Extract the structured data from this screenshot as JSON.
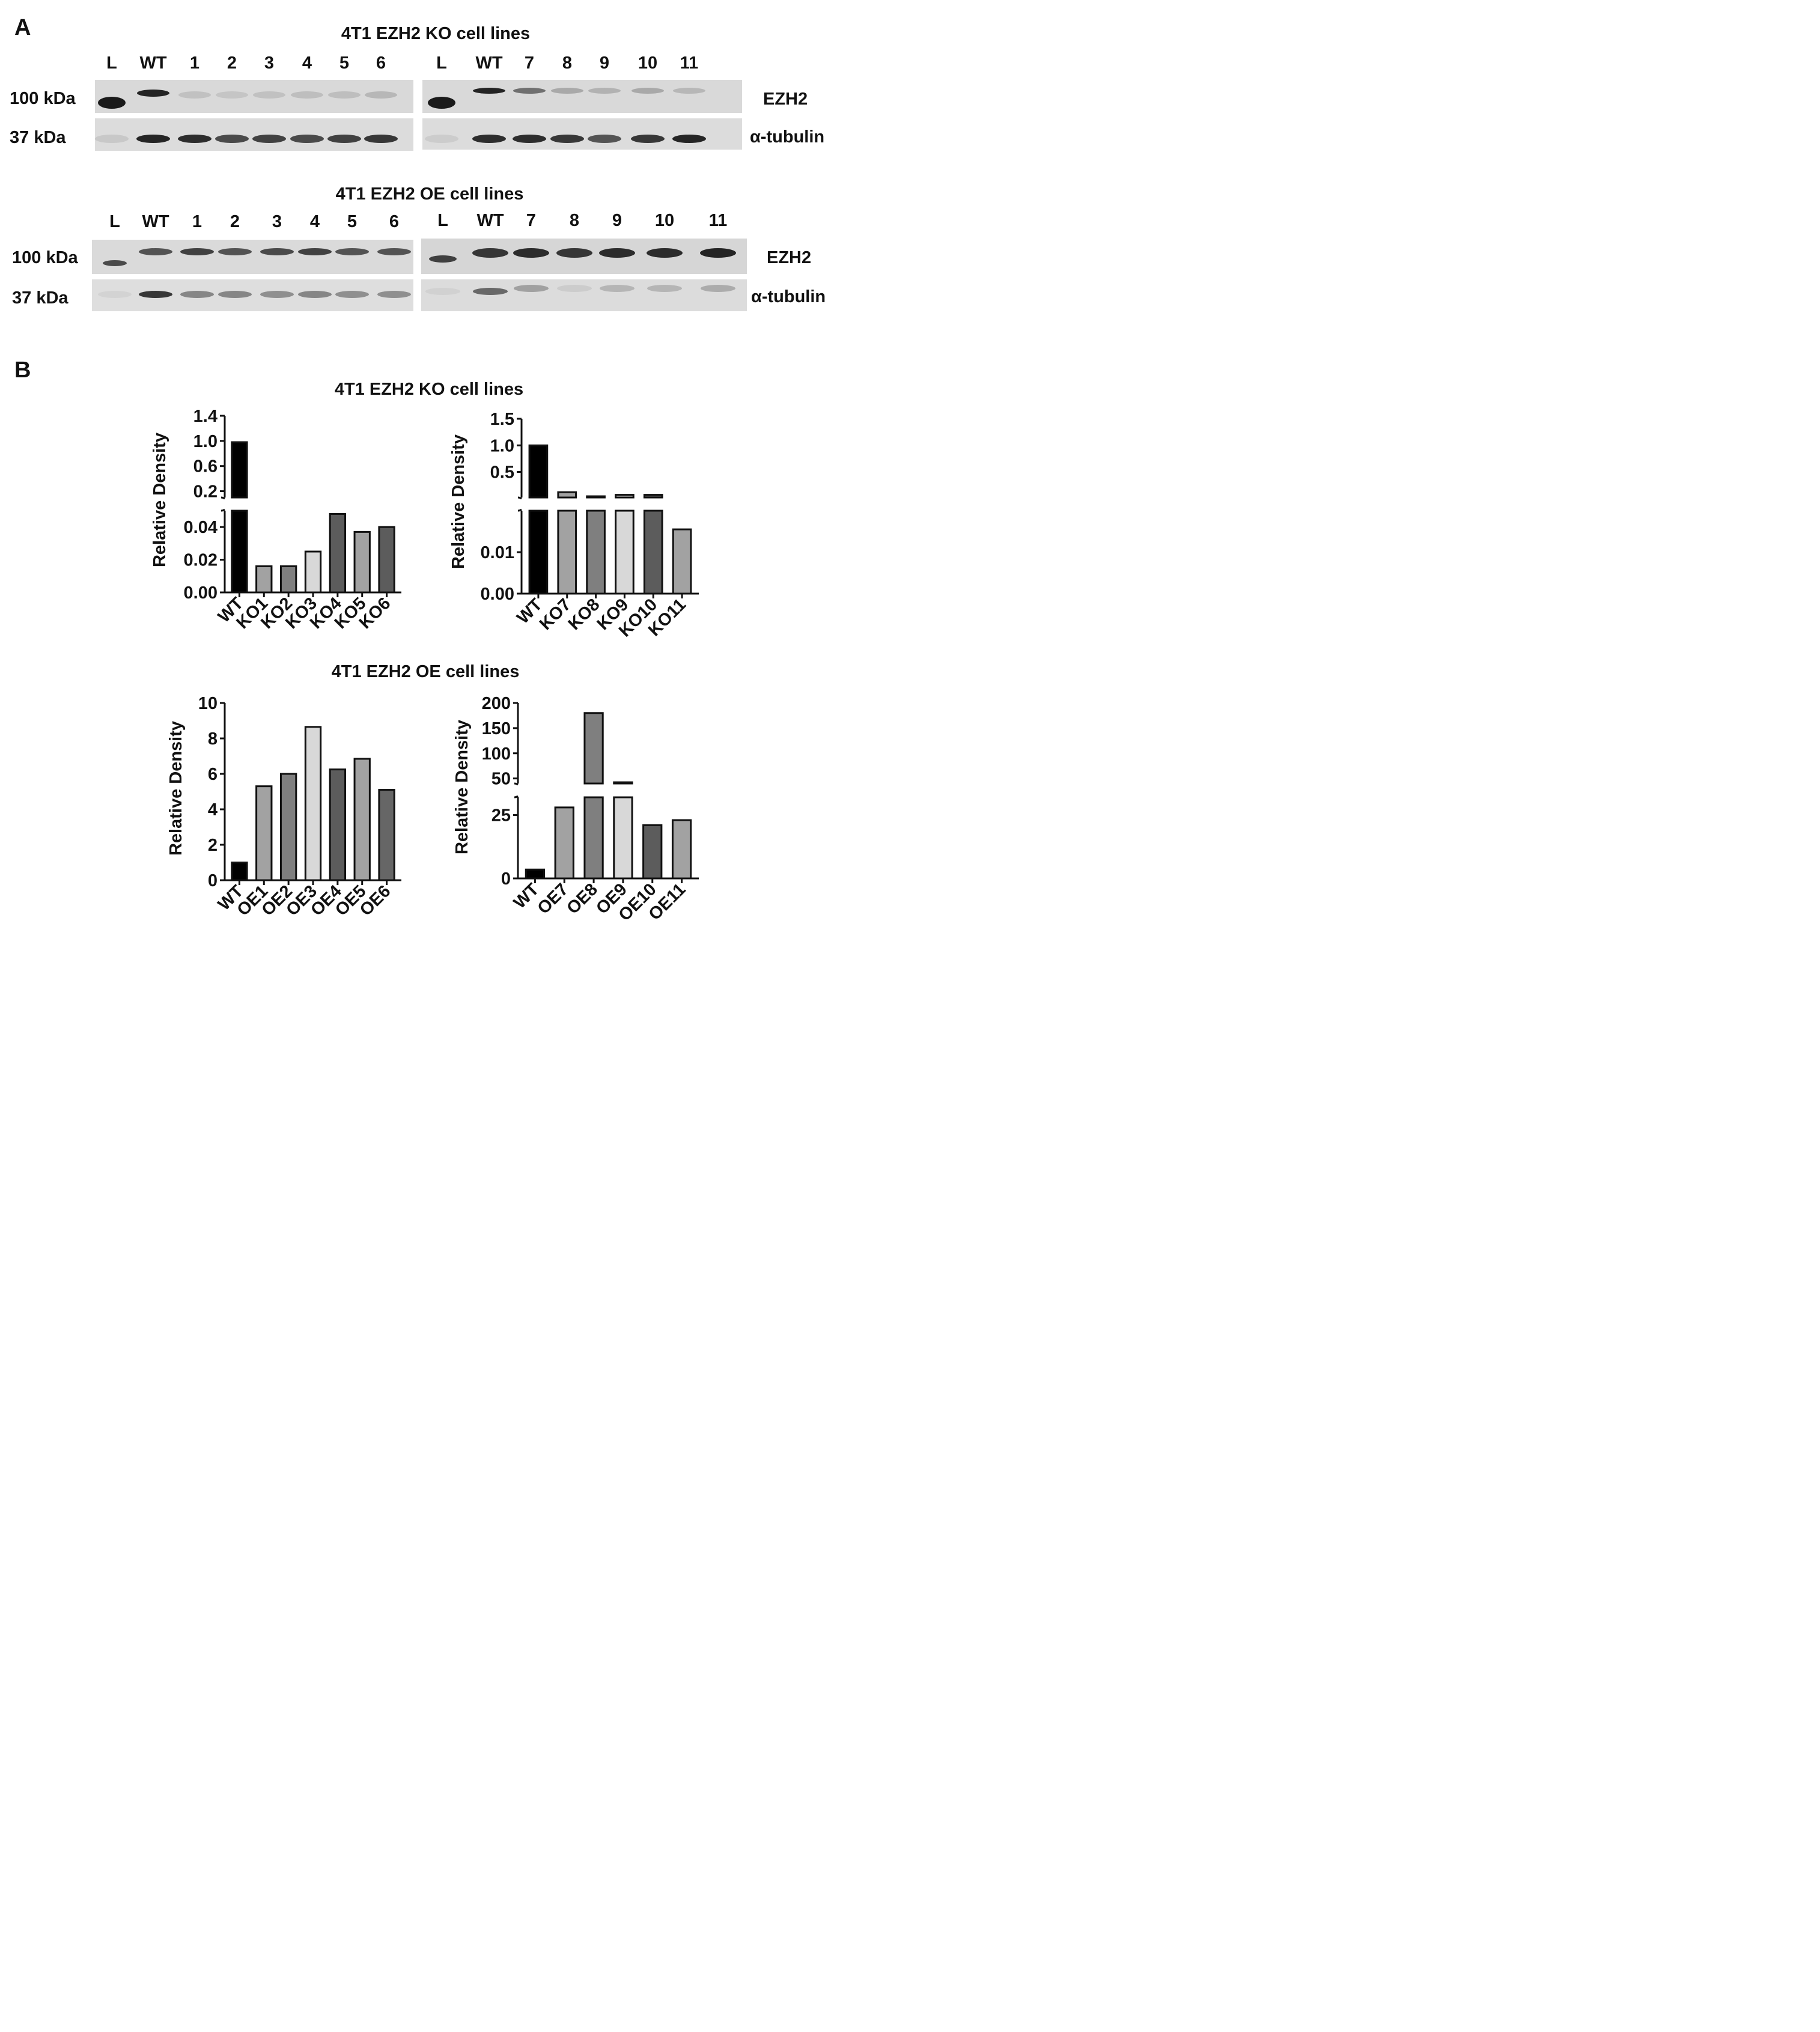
{
  "panel_a": {
    "label": "A",
    "ko_title": "4T1 EZH2 KO cell lines",
    "oe_title": "4T1 EZH2 OE cell lines",
    "lanes_left": [
      "L",
      "WT",
      "1",
      "2",
      "3",
      "4",
      "5",
      "6"
    ],
    "lanes_right": [
      "L",
      "WT",
      "7",
      "8",
      "9",
      "10",
      "11"
    ],
    "mw_top": "100 kDa",
    "mw_bottom": "37 kDa",
    "protein_top": "EZH2",
    "protein_bottom": "α-tubulin",
    "colors": {
      "membrane": "#d9d9d9",
      "band": "#1a1a1a"
    }
  },
  "panel_b": {
    "label": "B",
    "ko_title": "4T1 EZH2 KO cell lines",
    "oe_title": "4T1 EZH2 OE cell lines"
  },
  "chart_data": [
    {
      "type": "bar",
      "categories": [
        "WT",
        "KO1",
        "KO2",
        "KO3",
        "KO4",
        "KO5",
        "KO6"
      ],
      "values": [
        0.98,
        0.016,
        0.016,
        0.025,
        0.048,
        0.037,
        0.04
      ],
      "ylabel": "Relative Density",
      "axis_break": true,
      "lower_ylim": [
        0,
        0.05
      ],
      "lower_ticks": [
        "0.00",
        "0.02",
        "0.04"
      ],
      "upper_ylim": [
        0.1,
        1.4
      ],
      "upper_ticks": [
        "0.2",
        "0.6",
        "1.0",
        "1.4"
      ],
      "colors": [
        "#000000",
        "#a2a2a2",
        "#7f7f7f",
        "#d8d8d8",
        "#5c5c5c",
        "#a2a2a2",
        "#5c5c5c"
      ]
    },
    {
      "type": "bar",
      "categories": [
        "WT",
        "KO7",
        "KO8",
        "KO9",
        "KO10",
        "KO11"
      ],
      "values": [
        1.0,
        0.12,
        0.04,
        0.07,
        0.07,
        0.0155
      ],
      "ylabel": "Relative Density",
      "axis_break": true,
      "lower_ylim": [
        0,
        0.02
      ],
      "lower_ticks": [
        "0.00",
        "0.01"
      ],
      "upper_ylim": [
        0.02,
        1.5
      ],
      "upper_ticks": [
        "0.5",
        "1.0",
        "1.5"
      ],
      "colors": [
        "#000000",
        "#a2a2a2",
        "#7f7f7f",
        "#d8d8d8",
        "#5c5c5c",
        "#a2a2a2"
      ]
    },
    {
      "type": "bar",
      "categories": [
        "WT",
        "OE1",
        "OE2",
        "OE3",
        "OE4",
        "OE5",
        "OE6"
      ],
      "values": [
        1.0,
        5.3,
        6.0,
        8.65,
        6.25,
        6.85,
        5.1
      ],
      "ylabel": "Relative Density",
      "ylim": [
        0,
        10
      ],
      "ticks": [
        "0",
        "2",
        "4",
        "6",
        "8",
        "10"
      ],
      "colors": [
        "#000000",
        "#a2a2a2",
        "#7f7f7f",
        "#d8d8d8",
        "#5c5c5c",
        "#a2a2a2",
        "#666666"
      ]
    },
    {
      "type": "bar",
      "categories": [
        "WT",
        "OE7",
        "OE8",
        "OE9",
        "OE10",
        "OE11"
      ],
      "values": [
        3.5,
        28,
        180,
        40,
        21,
        23
      ],
      "ylabel": "Relative Density",
      "axis_break": true,
      "lower_ylim": [
        0,
        32
      ],
      "lower_ticks": [
        "0",
        "25"
      ],
      "upper_ylim": [
        40,
        200
      ],
      "upper_ticks": [
        "50",
        "100",
        "150",
        "200"
      ],
      "colors": [
        "#000000",
        "#a2a2a2",
        "#7f7f7f",
        "#d8d8d8",
        "#5c5c5c",
        "#a2a2a2"
      ]
    }
  ]
}
